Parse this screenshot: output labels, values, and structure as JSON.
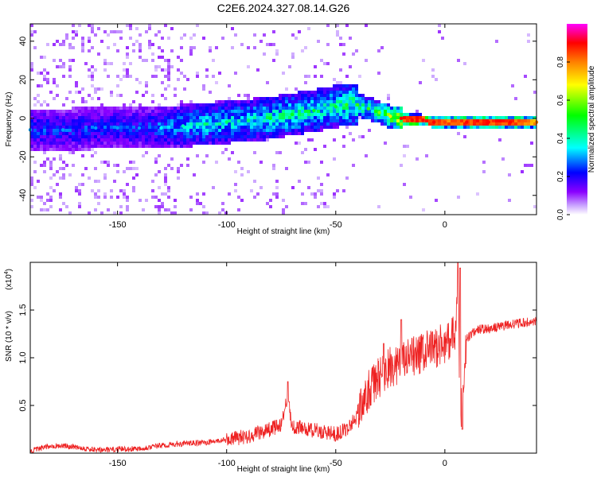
{
  "title": "C2E6.2024.327.08.14.G26",
  "chart_data": [
    {
      "type": "heatmap",
      "xlabel": "Height of straight line (km)",
      "ylabel": "Frequency (Hz)",
      "xlim": [
        -190,
        42
      ],
      "ylim": [
        -50,
        49
      ],
      "xticks": [
        -150,
        -100,
        -50,
        0
      ],
      "yticks": [
        -40,
        -20,
        0,
        20,
        40
      ],
      "colorbar": {
        "label": "Normalized spectral amplitude",
        "range": [
          0.0,
          1.0
        ],
        "ticks": [
          "0.0",
          "0.2",
          "0.4",
          "0.6",
          "0.8"
        ],
        "tick_values": [
          0.0,
          0.2,
          0.4,
          0.6,
          0.8
        ],
        "colormap": [
          "#ffffff",
          "#8a00ff",
          "#0000ff",
          "#00ffff",
          "#00ff00",
          "#ffff00",
          "#ff8000",
          "#ff0000",
          "#ff00ff"
        ]
      },
      "ridge": {
        "x": [
          -190,
          -175,
          -160,
          -150,
          -140,
          -130,
          -120,
          -110,
          -100,
          -90,
          -80,
          -70,
          -60,
          -50,
          -45,
          -40,
          -35,
          -30,
          -25,
          -20,
          -15,
          -10,
          -5,
          0,
          10,
          20,
          30,
          42
        ],
        "frequency": [
          -6,
          -6,
          -5,
          -5,
          -5,
          -5,
          -4,
          -3,
          -2,
          -1,
          0,
          2,
          4,
          6,
          7,
          7,
          5,
          3,
          1,
          0,
          -1,
          -1,
          -2,
          -2,
          -2,
          -2,
          -2,
          -2
        ],
        "peak_amplitude": [
          0.3,
          0.3,
          0.3,
          0.3,
          0.3,
          0.35,
          0.4,
          0.45,
          0.45,
          0.45,
          0.5,
          0.5,
          0.5,
          0.5,
          0.55,
          0.55,
          0.55,
          0.6,
          0.7,
          0.9,
          0.9,
          0.9,
          0.9,
          0.85,
          0.9,
          0.9,
          0.9,
          0.8
        ]
      },
      "grid": false
    },
    {
      "type": "line",
      "xlabel": "Height of straight line (km)",
      "ylabel": "SNR (10 * v/v)",
      "scale_note": "(x10",
      "scale_exp": "4",
      "xlim": [
        -190,
        42
      ],
      "ylim": [
        0,
        2.0
      ],
      "xticks": [
        -150,
        -100,
        -50,
        0
      ],
      "yticks": [
        0.5,
        1.0,
        1.5
      ],
      "ytick_labels": [
        "0.5",
        "1.0",
        "1.5"
      ],
      "color": "#ee2222",
      "series": [
        {
          "x": [
            -190,
            -180,
            -170,
            -160,
            -150,
            -140,
            -130,
            -120,
            -110,
            -100,
            -90,
            -80,
            -75,
            -72,
            -70,
            -60,
            -50,
            -45,
            -40,
            -35,
            -30,
            -25,
            -20,
            -15,
            -10,
            -5,
            0,
            5,
            6,
            7,
            10,
            15,
            20,
            30,
            42
          ],
          "values": [
            0.02,
            0.08,
            0.07,
            0.03,
            0.04,
            0.05,
            0.08,
            0.1,
            0.11,
            0.14,
            0.18,
            0.25,
            0.3,
            0.6,
            0.28,
            0.24,
            0.2,
            0.25,
            0.4,
            0.65,
            0.8,
            0.9,
            0.95,
            1.0,
            1.05,
            1.1,
            1.15,
            1.25,
            1.95,
            0.3,
            1.2,
            1.3,
            1.3,
            1.35,
            1.38
          ],
          "spikes": [
            {
              "x": -72,
              "y": 0.75
            },
            {
              "x": -28,
              "y": 1.15
            },
            {
              "x": -20,
              "y": 1.4
            },
            {
              "x": 7,
              "y": 1.94
            },
            {
              "x": 8,
              "y": 0.25
            }
          ]
        }
      ],
      "grid": false
    }
  ]
}
